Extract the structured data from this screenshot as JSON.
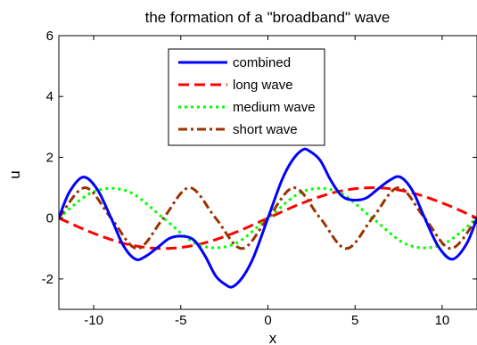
{
  "chart_data": {
    "type": "line",
    "title": "the formation of a \"broadband\" wave",
    "xlabel": "x",
    "ylabel": "u",
    "xlim": [
      -12,
      12
    ],
    "ylim": [
      -3,
      6
    ],
    "xticks": [
      -10,
      -5,
      0,
      5,
      10
    ],
    "yticks": [
      -2,
      0,
      2,
      4,
      6
    ],
    "grid": false,
    "legend_position": "top-center",
    "series": [
      {
        "name": "combined",
        "color": "#0000ff",
        "style": "solid",
        "x": [
          -12,
          -11.4,
          -10.6,
          -9.8,
          -9.0,
          -8.3,
          -7.6,
          -7.0,
          -6.3,
          -5.6,
          -4.8,
          -4.2,
          -3.6,
          -3.0,
          -2.4,
          -2.0,
          -1.4,
          -0.8,
          0,
          0.8,
          1.4,
          2.0,
          2.4,
          3.0,
          3.6,
          4.2,
          4.8,
          5.6,
          6.3,
          7.0,
          7.6,
          8.3,
          9.0,
          9.8,
          10.6,
          11.4,
          12
        ],
        "values": [
          0,
          0.85,
          1.35,
          0.95,
          0.0,
          -0.9,
          -1.35,
          -1.25,
          -0.95,
          -0.65,
          -0.6,
          -0.75,
          -1.25,
          -1.9,
          -2.2,
          -2.25,
          -1.9,
          -1.25,
          0,
          1.25,
          1.9,
          2.25,
          2.2,
          1.9,
          1.25,
          0.75,
          0.6,
          0.65,
          0.95,
          1.25,
          1.35,
          0.9,
          0.0,
          -0.95,
          -1.35,
          -0.85,
          0
        ]
      },
      {
        "name": "long wave",
        "color": "#ff0000",
        "style": "dashed",
        "x": [
          -12,
          -10,
          -8,
          -6,
          -4,
          -2,
          0,
          2,
          4,
          6,
          8,
          10,
          12
        ],
        "values": [
          0,
          -0.5,
          -0.87,
          -1.0,
          -0.87,
          -0.5,
          0,
          0.5,
          0.87,
          1.0,
          0.87,
          0.5,
          0
        ]
      },
      {
        "name": "medium wave",
        "color": "#00ff00",
        "style": "dotted",
        "x": [
          -12,
          -10,
          -8,
          -6,
          -4,
          -2,
          0,
          2,
          4,
          6,
          8,
          10,
          12
        ],
        "values": [
          0,
          0.87,
          0.87,
          0,
          -0.87,
          -0.87,
          0,
          0.87,
          0.87,
          0,
          -0.87,
          -0.87,
          0
        ]
      },
      {
        "name": "short wave",
        "color": "#993300",
        "style": "dash-dot",
        "x": [
          -12,
          -10.5,
          -9,
          -7.5,
          -6,
          -4.5,
          -3,
          -1.5,
          0,
          1.5,
          3,
          4.5,
          6,
          7.5,
          9,
          10.5,
          12
        ],
        "values": [
          0,
          1.0,
          0,
          -1.0,
          0,
          1.0,
          0,
          -1.0,
          0,
          1.0,
          0,
          -1.0,
          0,
          1.0,
          0,
          -1.0,
          0
        ]
      }
    ]
  }
}
